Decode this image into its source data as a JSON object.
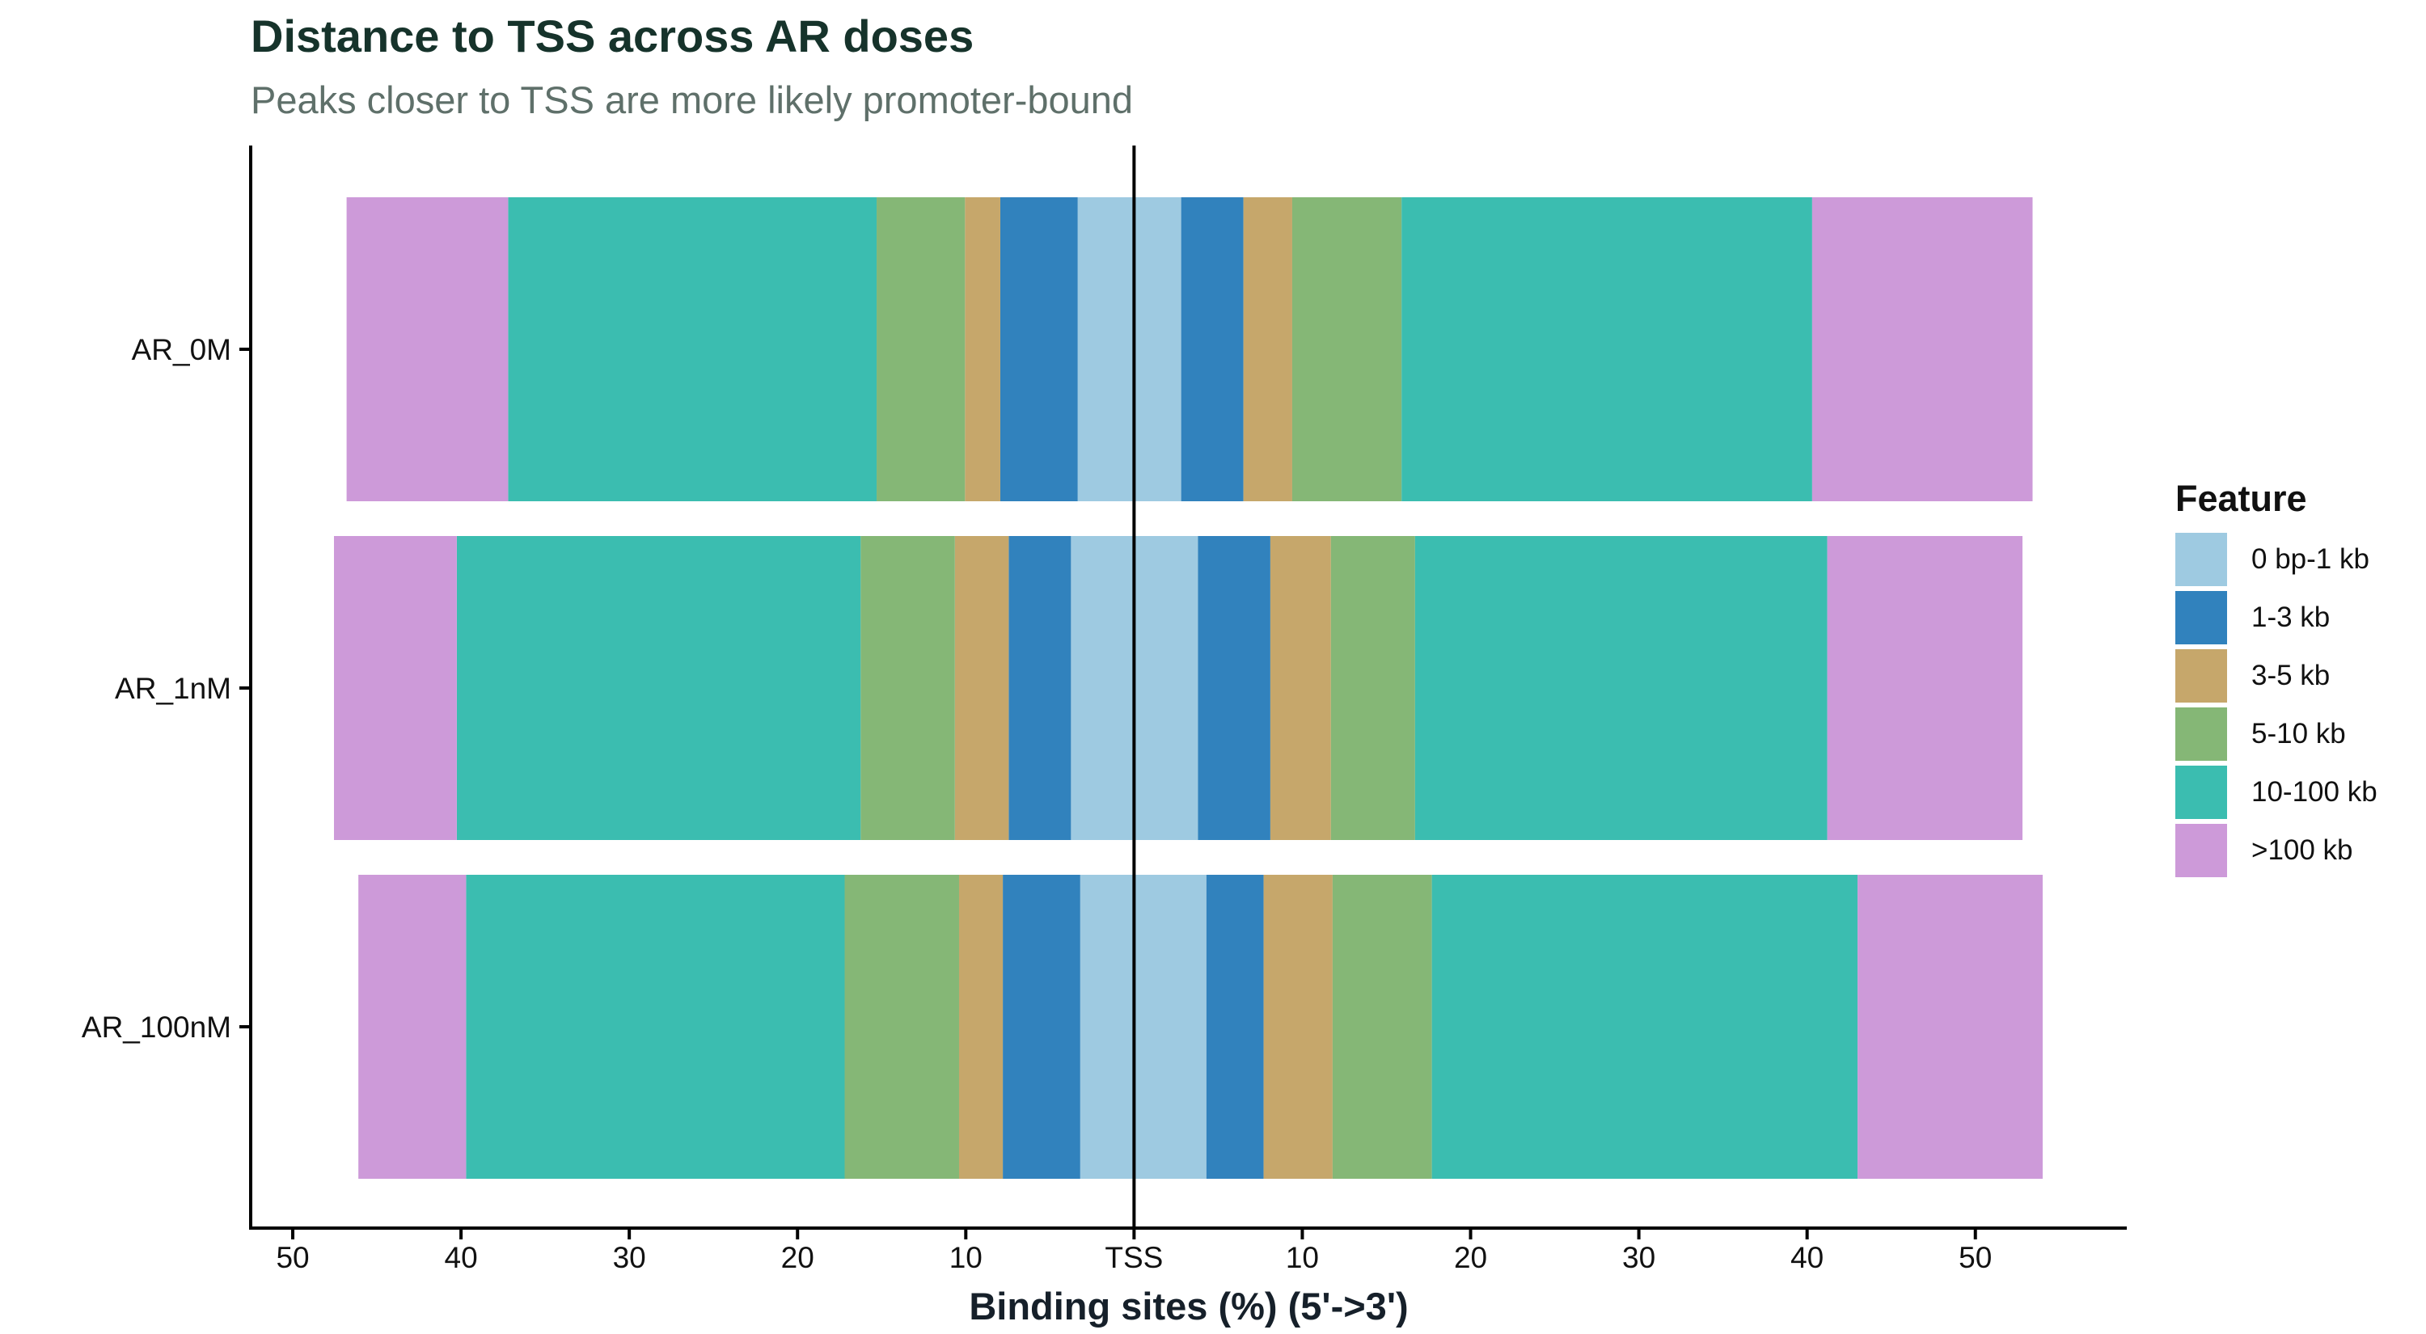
{
  "title": "Distance to TSS across AR doses",
  "subtitle": "Peaks closer to TSS are more likely promoter-bound",
  "chart_data": {
    "type": "bar",
    "orientation": "horizontal",
    "layout": "diverging, bidirectional stacked from TSS",
    "categories": [
      "AR_0M",
      "AR_1nM",
      "AR_100nM"
    ],
    "xlabel": "Binding sites (%) (5'->3')",
    "ylabel": "",
    "xlim": [
      -52.5,
      59
    ],
    "x_ticks": [
      -50,
      -40,
      -30,
      -20,
      -10,
      0,
      10,
      20,
      30,
      40,
      50
    ],
    "x_tick_labels": [
      "50",
      "40",
      "30",
      "20",
      "10",
      "TSS",
      "10",
      "20",
      "30",
      "40",
      "50"
    ],
    "center_line": "TSS",
    "grid": false,
    "legend": {
      "title": "Feature",
      "position": "right"
    },
    "series": [
      {
        "name": "0 bp-1 kb",
        "color": "#9ecae1",
        "upstream": [
          3.35,
          3.75,
          3.2
        ],
        "downstream": [
          2.8,
          3.8,
          4.3
        ]
      },
      {
        "name": "1-3 kb",
        "color": "#3182bd",
        "upstream": [
          4.6,
          3.7,
          4.6
        ],
        "downstream": [
          3.7,
          4.3,
          3.4
        ]
      },
      {
        "name": "3-5 kb",
        "color": "#c6a76b",
        "upstream": [
          2.1,
          3.2,
          2.6
        ],
        "downstream": [
          2.9,
          3.6,
          4.1
        ]
      },
      {
        "name": "5-10 kb",
        "color": "#85b776",
        "upstream": [
          5.25,
          5.6,
          6.8
        ],
        "downstream": [
          6.5,
          5.0,
          5.9
        ]
      },
      {
        "name": "10-100 kb",
        "color": "#3bbdb0",
        "upstream": [
          21.9,
          24.0,
          22.5
        ],
        "downstream": [
          24.4,
          24.5,
          25.3
        ]
      },
      {
        "name": ">100 kb",
        "color": "#cd9ad9",
        "upstream": [
          9.6,
          7.3,
          6.4
        ],
        "downstream": [
          13.1,
          11.6,
          11.0
        ]
      }
    ]
  }
}
